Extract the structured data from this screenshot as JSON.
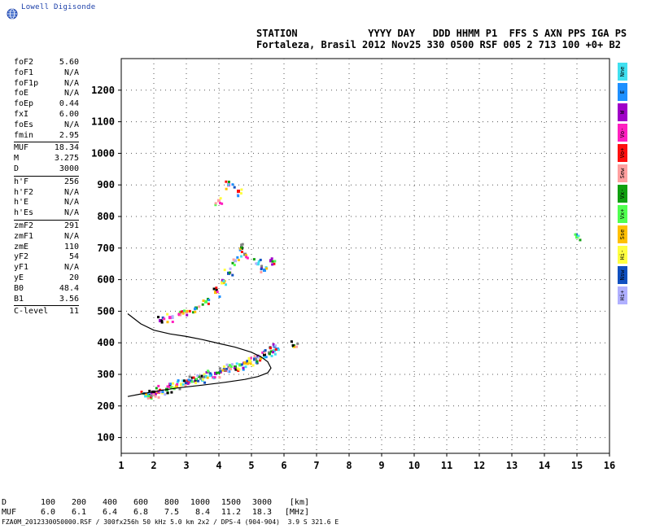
{
  "brand": {
    "name": "Lowell Digisonde"
  },
  "header": {
    "line1": "STATION            YYYY DAY   DDD HHMM P1  FFS S AXN PPS IGA PS",
    "line2": "Fortaleza, Brasil 2012 Nov25 330 0500 RSF 005 2 713 100 +0+ B2"
  },
  "params": {
    "group1": [
      {
        "label": "foF2",
        "value": "5.60"
      },
      {
        "label": "foF1",
        "value": "N/A"
      },
      {
        "label": "foF1p",
        "value": "N/A"
      },
      {
        "label": "foE",
        "value": "N/A"
      },
      {
        "label": "foEp",
        "value": "0.44"
      },
      {
        "label": "fxI",
        "value": "6.00"
      },
      {
        "label": "foEs",
        "value": "N/A"
      },
      {
        "label": "fmin",
        "value": "2.95"
      }
    ],
    "group2": [
      {
        "label": "MUF",
        "value": "18.34"
      },
      {
        "label": "M",
        "value": "3.275"
      },
      {
        "label": "D",
        "value": "3000"
      }
    ],
    "group3": [
      {
        "label": "h'F",
        "value": "256"
      },
      {
        "label": "h'F2",
        "value": "N/A"
      },
      {
        "label": "h'E",
        "value": "N/A"
      },
      {
        "label": "h'Es",
        "value": "N/A"
      }
    ],
    "group4": [
      {
        "label": "zmF2",
        "value": "291"
      },
      {
        "label": "zmF1",
        "value": "N/A"
      },
      {
        "label": "zmE",
        "value": "110"
      },
      {
        "label": "yF2",
        "value": "54"
      },
      {
        "label": "yF1",
        "value": "N/A"
      },
      {
        "label": "yE",
        "value": "20"
      },
      {
        "label": "B0",
        "value": "48.4"
      },
      {
        "label": "B1",
        "value": "3.56"
      }
    ],
    "group5": [
      {
        "label": "C-level",
        "value": "11"
      }
    ]
  },
  "modes": [
    {
      "label": "Nne",
      "color": "#40e0f0"
    },
    {
      "label": "E",
      "color": "#1e90ff"
    },
    {
      "label": "W",
      "color": "#a000c8"
    },
    {
      "label": "Vo-",
      "color": "#ff20c0"
    },
    {
      "label": "Vo+",
      "color": "#ff1010"
    },
    {
      "label": "Sew",
      "color": "#ffa0a0"
    },
    {
      "label": "Vx-",
      "color": "#10a010"
    },
    {
      "label": "Vx+",
      "color": "#50ff50"
    },
    {
      "label": "Sse",
      "color": "#ffc000"
    },
    {
      "label": "Hi-",
      "color": "#ffff40"
    },
    {
      "label": "Nsw",
      "color": "#1050c0"
    },
    {
      "label": "Hi+",
      "color": "#b0b0ff"
    }
  ],
  "muf_table": {
    "d_label": "D",
    "d_values": [
      "100",
      "200",
      "400",
      "600",
      "800",
      "1000",
      "1500",
      "3000"
    ],
    "d_unit": "[km]",
    "muf_label": "MUF",
    "muf_values": [
      "6.0",
      "6.1",
      "6.4",
      "6.8",
      "7.5",
      "8.4",
      "11.2",
      "18.3"
    ],
    "muf_unit": "[MHz]"
  },
  "footer": "FZA0M_2012330050000.RSF / 300fx256h 50 kHz 5.0 km 2x2 / DPS-4 (904-904)  3.9 S 321.6 E",
  "chart_data": {
    "type": "scatter",
    "title": "",
    "xlabel": "",
    "ylabel": "",
    "xlim": [
      1,
      16
    ],
    "ylim": [
      50,
      1300
    ],
    "x_ticks": [
      1,
      2,
      3,
      4,
      5,
      6,
      7,
      8,
      9,
      10,
      11,
      12,
      13,
      14,
      15,
      16
    ],
    "y_ticks": [
      100,
      200,
      300,
      400,
      500,
      600,
      700,
      800,
      900,
      1000,
      1100,
      1200
    ],
    "grid": "dotted",
    "profile_curve": {
      "x": [
        1.2,
        1.6,
        2.0,
        2.5,
        3.0,
        3.5,
        4.0,
        4.5,
        5.0,
        5.3,
        5.5,
        5.6,
        5.5,
        5.2,
        4.8,
        4.2,
        3.5,
        2.8,
        2.2,
        1.6,
        1.2
      ],
      "y": [
        492,
        460,
        440,
        428,
        420,
        410,
        398,
        386,
        370,
        355,
        340,
        320,
        305,
        293,
        284,
        275,
        266,
        258,
        249,
        238,
        230
      ]
    },
    "trace_scatter": {
      "description_free": true,
      "points": [
        [
          1.75,
          232
        ],
        [
          1.85,
          235
        ],
        [
          1.95,
          238
        ],
        [
          2.05,
          240
        ],
        [
          2.15,
          244
        ],
        [
          2.25,
          248
        ],
        [
          2.4,
          252
        ],
        [
          2.55,
          258
        ],
        [
          2.7,
          263
        ],
        [
          2.85,
          268
        ],
        [
          3.0,
          273
        ],
        [
          3.15,
          278
        ],
        [
          3.3,
          283
        ],
        [
          3.45,
          288
        ],
        [
          3.6,
          293
        ],
        [
          3.75,
          298
        ],
        [
          3.9,
          303
        ],
        [
          4.05,
          308
        ],
        [
          4.2,
          313
        ],
        [
          4.35,
          318
        ],
        [
          4.5,
          323
        ],
        [
          4.65,
          330
        ],
        [
          4.8,
          336
        ],
        [
          4.95,
          342
        ],
        [
          5.1,
          348
        ],
        [
          5.25,
          355
        ],
        [
          5.4,
          362
        ],
        [
          5.55,
          368
        ],
        [
          5.7,
          375
        ],
        [
          5.8,
          380
        ],
        [
          2.2,
          470
        ],
        [
          2.5,
          480
        ],
        [
          2.8,
          490
        ],
        [
          3.0,
          498
        ],
        [
          3.3,
          510
        ],
        [
          3.6,
          530
        ],
        [
          3.9,
          560
        ],
        [
          4.1,
          590
        ],
        [
          4.3,
          620
        ],
        [
          4.5,
          660
        ],
        [
          4.7,
          700
        ],
        [
          4.8,
          680
        ],
        [
          5.2,
          650
        ],
        [
          5.4,
          630
        ],
        [
          5.6,
          660
        ],
        [
          4.3,
          900
        ],
        [
          4.6,
          880
        ],
        [
          4.0,
          850
        ],
        [
          6.3,
          390
        ],
        [
          15.0,
          735
        ]
      ]
    }
  }
}
